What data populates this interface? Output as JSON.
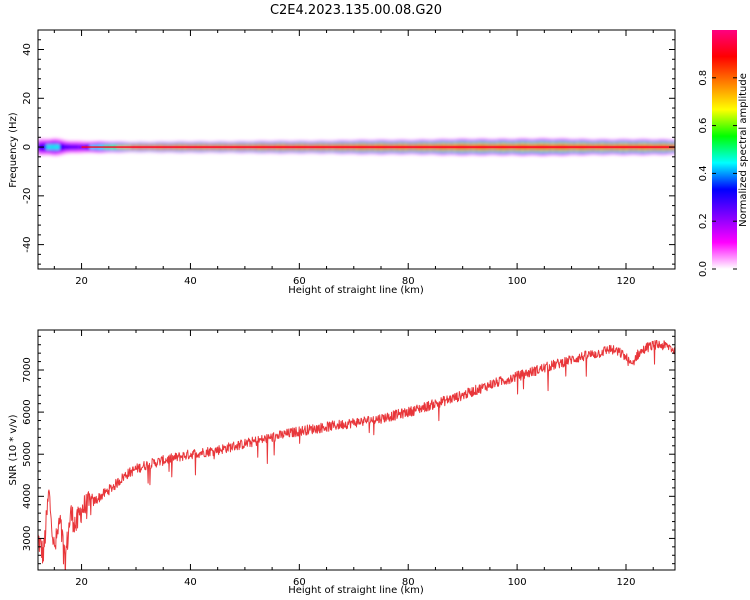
{
  "title": "C2E4.2023.135.00.08.G20",
  "chart_data": [
    {
      "type": "heatmap",
      "xlabel": "Height of straight line (km)",
      "ylabel": "Frequency (Hz)",
      "xlim": [
        12,
        129
      ],
      "ylim": [
        -50,
        48
      ],
      "xticks": [
        20,
        40,
        60,
        80,
        100,
        120
      ],
      "yticks": [
        40,
        20,
        0,
        -20,
        -40
      ],
      "colorbar": {
        "label": "Normalized spectral amplitude",
        "range": [
          0,
          1
        ],
        "ticks": [
          "0.0",
          "0.2",
          "0.4",
          "0.6",
          "0.8"
        ],
        "colormap": [
          "#ffffff",
          "#ff00ff",
          "#8000ff",
          "#0000ff",
          "#00ffff",
          "#00ff00",
          "#ffff00",
          "#ff8000",
          "#ff0000",
          "#ff0080"
        ]
      },
      "band": {
        "center_hz": 0,
        "profile": [
          {
            "x": 12,
            "halfwidth_hz": 3.5,
            "peak": 0.35
          },
          {
            "x": 15,
            "halfwidth_hz": 4,
            "peak": 0.45
          },
          {
            "x": 17,
            "halfwidth_hz": 3,
            "peak": 0.35
          },
          {
            "x": 20,
            "halfwidth_hz": 2.5,
            "peak": 0.3
          },
          {
            "x": 30,
            "halfwidth_hz": 2,
            "peak": 0.9
          },
          {
            "x": 60,
            "halfwidth_hz": 2.5,
            "peak": 0.95
          },
          {
            "x": 100,
            "halfwidth_hz": 3.5,
            "peak": 0.9
          },
          {
            "x": 129,
            "halfwidth_hz": 3,
            "peak": 0.9
          }
        ]
      }
    },
    {
      "type": "line",
      "xlabel": "Height of straight line (km)",
      "ylabel": "SNR (10 * v/v)",
      "xlim": [
        12,
        129
      ],
      "ylim": [
        2250,
        7950
      ],
      "xticks": [
        20,
        40,
        60,
        80,
        100,
        120
      ],
      "yticks": [
        3000,
        4000,
        5000,
        6000,
        7000
      ],
      "series": [
        {
          "color": "#e8363a",
          "x": [
            12,
            13,
            14,
            15,
            16,
            17,
            18,
            19,
            20,
            22,
            24,
            26,
            28,
            30,
            32,
            35,
            40,
            45,
            50,
            55,
            60,
            65,
            70,
            75,
            80,
            85,
            90,
            95,
            100,
            105,
            110,
            113,
            115,
            117,
            118,
            119,
            120,
            121,
            122,
            124,
            126,
            128,
            129
          ],
          "values": [
            3000,
            2600,
            4100,
            2700,
            3400,
            2500,
            3600,
            3300,
            3700,
            3850,
            4050,
            4250,
            4500,
            4650,
            4750,
            4850,
            5000,
            5100,
            5250,
            5400,
            5550,
            5650,
            5750,
            5850,
            6000,
            6200,
            6400,
            6650,
            6850,
            7050,
            7250,
            7350,
            7400,
            7500,
            7450,
            7400,
            7300,
            7100,
            7350,
            7550,
            7600,
            7550,
            7450
          ]
        }
      ]
    }
  ]
}
